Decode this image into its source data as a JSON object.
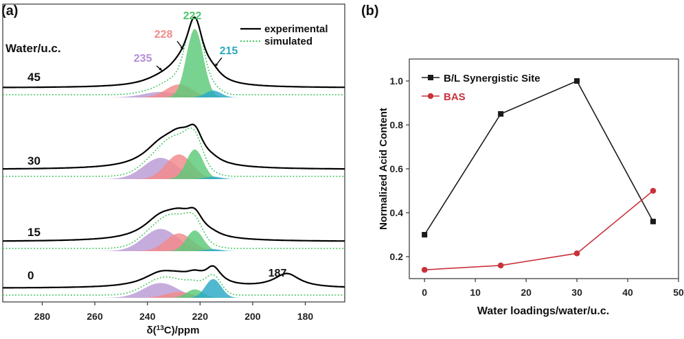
{
  "chart_data": [
    {
      "panel": "(a)",
      "type": "line",
      "xlabel": "δ(¹³C)/ppm",
      "xlabel_prefix": "δ(",
      "xlabel_sup": "13",
      "xlabel_suffix": "C)/ppm",
      "xlim": [
        295,
        165
      ],
      "x_ticks": [
        280,
        260,
        240,
        220,
        200,
        180
      ],
      "y_group_label": "Water/u.c.",
      "legend": [
        {
          "name": "experimental",
          "style": "solid",
          "color": "#000000"
        },
        {
          "name": "simulated",
          "style": "dotted",
          "color": "#3cc45a"
        }
      ],
      "peak_labels": [
        {
          "text": "235",
          "ppm": 235,
          "color": "#b38ed4"
        },
        {
          "text": "228",
          "ppm": 228,
          "color": "#f08a8a"
        },
        {
          "text": "222",
          "ppm": 222,
          "color": "#4cc46a"
        },
        {
          "text": "215",
          "ppm": 215,
          "color": "#2aa9bd"
        },
        {
          "text": "187",
          "ppm": 187,
          "color": "#111111"
        }
      ],
      "components": [
        {
          "name": "235",
          "center": 235,
          "width": 6.5,
          "color": "#b99ad6"
        },
        {
          "name": "228",
          "center": 228,
          "width": 5.0,
          "color": "#f3898a"
        },
        {
          "name": "222",
          "center": 222,
          "width": 3.2,
          "color": "#5cc977"
        },
        {
          "name": "215",
          "center": 215,
          "width": 3.0,
          "color": "#2aa9c6"
        }
      ],
      "spectra": [
        {
          "water": "45",
          "amplitudes": {
            "235": 0.08,
            "228": 0.19,
            "222": 1.0,
            "215": 0.1,
            "187": 0.0
          }
        },
        {
          "water": "30",
          "amplitudes": {
            "235": 0.43,
            "228": 0.5,
            "222": 0.6,
            "215": 0.05,
            "187": 0.0
          }
        },
        {
          "water": "15",
          "amplitudes": {
            "235": 0.45,
            "228": 0.36,
            "222": 0.42,
            "215": 0.04,
            "187": 0.0
          }
        },
        {
          "water": "0",
          "amplitudes": {
            "235": 0.3,
            "228": 0.12,
            "222": 0.17,
            "215": 0.38,
            "187": 0.28
          }
        }
      ]
    },
    {
      "panel": "(b)",
      "type": "line",
      "xlabel": "Water loadings/water/u.c.",
      "ylabel": "Normalized Acid Content",
      "xlim": [
        -3,
        50
      ],
      "ylim": [
        0.1,
        1.1
      ],
      "x_ticks": [
        0,
        10,
        20,
        30,
        40,
        50
      ],
      "y_ticks": [
        0.2,
        0.4,
        0.6,
        0.8,
        1.0
      ],
      "y_tick_labels": [
        "0.2",
        "0.4",
        "0.6",
        "0.8",
        "1.0"
      ],
      "x": [
        0,
        15,
        30,
        45
      ],
      "series": [
        {
          "name": "B/L Synergistic Site",
          "color": "#1a1a1a",
          "marker": "square",
          "values": [
            0.3,
            0.85,
            1.0,
            0.36
          ]
        },
        {
          "name": "BAS",
          "color": "#c8323a",
          "marker": "circle",
          "values": [
            0.14,
            0.16,
            0.215,
            0.5
          ]
        }
      ]
    }
  ]
}
